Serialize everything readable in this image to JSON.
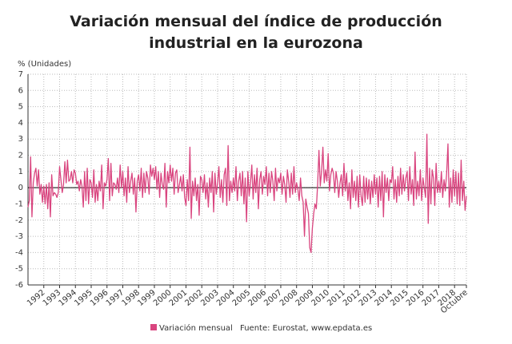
{
  "chart_data": {
    "type": "line",
    "title": "Variación mensual del índice de producción industrial en la eurozona",
    "y_label": "% (Unidades)",
    "source": "Fuente: Eurostat, www.epdata.es",
    "categories": [
      null,
      null,
      null,
      null,
      null,
      null,
      null,
      null,
      null,
      null,
      null,
      null,
      "1992",
      null,
      null,
      null,
      null,
      null,
      null,
      null,
      null,
      null,
      null,
      null,
      "1993",
      null,
      null,
      null,
      null,
      null,
      null,
      null,
      null,
      null,
      null,
      null,
      "1994",
      null,
      null,
      null,
      null,
      null,
      null,
      null,
      null,
      null,
      null,
      null,
      "1995",
      null,
      null,
      null,
      null,
      null,
      null,
      null,
      null,
      null,
      null,
      null,
      "1996",
      null,
      null,
      null,
      null,
      null,
      null,
      null,
      null,
      null,
      null,
      null,
      "1997",
      null,
      null,
      null,
      null,
      null,
      null,
      null,
      null,
      null,
      null,
      null,
      "1998",
      null,
      null,
      null,
      null,
      null,
      null,
      null,
      null,
      null,
      null,
      null,
      "1999",
      null,
      null,
      null,
      null,
      null,
      null,
      null,
      null,
      null,
      null,
      null,
      "2000",
      null,
      null,
      null,
      null,
      null,
      null,
      null,
      null,
      null,
      null,
      null,
      "2001",
      null,
      null,
      null,
      null,
      null,
      null,
      null,
      null,
      null,
      null,
      null,
      "2002",
      null,
      null,
      null,
      null,
      null,
      null,
      null,
      null,
      null,
      null,
      null,
      "2003",
      null,
      null,
      null,
      null,
      null,
      null,
      null,
      null,
      null,
      null,
      null,
      "2004",
      null,
      null,
      null,
      null,
      null,
      null,
      null,
      null,
      null,
      null,
      null,
      "2005",
      null,
      null,
      null,
      null,
      null,
      null,
      null,
      null,
      null,
      null,
      null,
      "2006",
      null,
      null,
      null,
      null,
      null,
      null,
      null,
      null,
      null,
      null,
      null,
      "2007",
      null,
      null,
      null,
      null,
      null,
      null,
      null,
      null,
      null,
      null,
      null,
      "2008",
      null,
      null,
      null,
      null,
      null,
      null,
      null,
      null,
      null,
      null,
      null,
      "2009",
      null,
      null,
      null,
      null,
      null,
      null,
      null,
      null,
      null,
      null,
      null,
      "2010",
      null,
      null,
      null,
      null,
      null,
      null,
      null,
      null,
      null,
      null,
      null,
      "2011",
      null,
      null,
      null,
      null,
      null,
      null,
      null,
      null,
      null,
      null,
      null,
      "2012",
      null,
      null,
      null,
      null,
      null,
      null,
      null,
      null,
      null,
      null,
      null,
      "2013",
      null,
      null,
      null,
      null,
      null,
      null,
      null,
      null,
      null,
      null,
      null,
      "2014",
      null,
      null,
      null,
      null,
      null,
      null,
      null,
      null,
      null,
      null,
      null,
      "2015",
      null,
      null,
      null,
      null,
      null,
      null,
      null,
      null,
      null,
      null,
      null,
      "2016",
      null,
      null,
      null,
      null,
      null,
      null,
      null,
      null,
      null,
      null,
      null,
      "2017",
      null,
      null,
      null,
      null,
      null,
      null,
      null,
      null,
      null,
      null,
      null,
      "2018",
      null,
      null,
      null,
      null,
      null,
      null,
      null,
      null,
      "Octubre"
    ],
    "series": [
      {
        "name": "Variación mensual",
        "color": "#d9457f",
        "values": [
          -1.2,
          -0.8,
          1.9,
          -1.8,
          0.3,
          0.9,
          1.2,
          0.1,
          1.1,
          -0.4,
          0.2,
          -0.9,
          0.1,
          -1.0,
          0.2,
          -1.3,
          0.3,
          -1.8,
          0.8,
          -0.5,
          -0.3,
          -0.4,
          -0.6,
          -0.3,
          1.3,
          0.5,
          -0.3,
          0.2,
          1.6,
          0.3,
          1.7,
          0.4,
          0.5,
          1.0,
          0.3,
          1.1,
          0.9,
          0.2,
          0.4,
          -0.2,
          0.5,
          0.1,
          -1.2,
          1.0,
          -0.8,
          1.2,
          -1.0,
          0.5,
          0.3,
          -0.6,
          1.1,
          -0.9,
          0.2,
          -0.8,
          0.4,
          -0.2,
          1.4,
          -1.3,
          0.3,
          0.1,
          0.5,
          1.8,
          -0.8,
          1.5,
          -0.5,
          0.3,
          0.2,
          -0.1,
          0.6,
          -0.3,
          1.4,
          0.0,
          1.0,
          -0.5,
          0.6,
          -0.9,
          1.3,
          -0.3,
          0.4,
          0.9,
          -0.4,
          0.6,
          -1.5,
          0.4,
          0.8,
          -0.2,
          1.2,
          -0.6,
          0.9,
          -0.3,
          1.0,
          0.6,
          -0.4,
          1.4,
          0.7,
          1.2,
          0.5,
          1.3,
          -0.1,
          1.0,
          -0.6,
          0.9,
          0.2,
          -0.1,
          1.5,
          -1.2,
          1.0,
          0.3,
          1.4,
          0.4,
          1.2,
          -0.4,
          0.9,
          1.1,
          -0.3,
          0.2,
          0.7,
          -0.2,
          0.8,
          -0.6,
          -1.1,
          0.5,
          -0.8,
          2.5,
          -1.9,
          0.4,
          -0.5,
          0.6,
          -0.8,
          0.2,
          -1.7,
          0.7,
          0.5,
          -0.3,
          0.8,
          -0.7,
          0.3,
          -1.2,
          0.6,
          -0.3,
          1.0,
          -1.5,
          0.9,
          -0.4,
          0.3,
          1.3,
          -0.6,
          0.5,
          -0.9,
          0.8,
          1.2,
          -1.1,
          2.6,
          -0.8,
          0.4,
          -0.3,
          0.6,
          -0.2,
          1.3,
          -0.8,
          0.4,
          0.9,
          -0.5,
          1.0,
          -1.0,
          0.6,
          -2.1,
          1.0,
          -0.5,
          0.3,
          1.4,
          -0.7,
          0.8,
          -0.3,
          1.2,
          -1.3,
          0.5,
          1.0,
          -0.4,
          0.7,
          0.2,
          1.3,
          -0.5,
          0.9,
          -0.3,
          1.0,
          0.4,
          -0.8,
          1.2,
          -0.2,
          0.6,
          0.3,
          0.9,
          -0.4,
          0.7,
          0.2,
          -0.9,
          1.1,
          0.4,
          -0.6,
          0.9,
          -0.4,
          1.3,
          -0.3,
          0.3,
          -0.1,
          -0.8,
          0.6,
          -0.5,
          -0.9,
          -3.0,
          -0.7,
          -1.2,
          -1.6,
          -3.7,
          -4.0,
          -2.5,
          -1.6,
          -1.0,
          -1.3,
          0.2,
          2.3,
          0.1,
          1.0,
          2.5,
          0.3,
          1.1,
          0.4,
          2.1,
          -0.2,
          0.8,
          1.2,
          0.9,
          -0.3,
          1.0,
          0.4,
          -0.6,
          0.3,
          0.8,
          -0.5,
          1.5,
          -0.2,
          0.9,
          -0.8,
          0.3,
          -1.3,
          1.1,
          -0.6,
          0.4,
          -0.8,
          0.7,
          -1.2,
          0.8,
          -0.5,
          -1.1,
          0.7,
          -0.9,
          0.6,
          -0.7,
          0.5,
          -1.0,
          0.4,
          -0.6,
          0.8,
          -0.4,
          0.6,
          -1.2,
          0.7,
          -0.8,
          1.0,
          -1.8,
          0.8,
          -0.3,
          0.6,
          -0.8,
          0.5,
          0.3,
          1.3,
          -0.7,
          0.5,
          -0.9,
          0.7,
          -0.5,
          1.2,
          -0.4,
          0.8,
          -0.2,
          0.6,
          1.0,
          -0.8,
          1.3,
          -0.4,
          0.5,
          -1.1,
          2.2,
          -0.7,
          0.4,
          -0.5,
          1.1,
          -0.8,
          0.6,
          0.0,
          -0.6,
          3.3,
          -2.2,
          1.2,
          -1.0,
          1.1,
          0.6,
          -1.1,
          1.5,
          -0.3,
          0.4,
          -0.3,
          1.0,
          -0.6,
          0.5,
          -0.2,
          0.9,
          2.7,
          -1.2,
          0.6,
          -0.9,
          1.1,
          -0.5,
          1.0,
          -1.0,
          0.9,
          -1.1,
          1.7,
          -0.8,
          0.4,
          -1.4,
          -0.5
        ]
      }
    ],
    "ylim": [
      -6,
      7
    ],
    "yticks": [
      -6,
      -5,
      -4,
      -3,
      -2,
      -1,
      0,
      1,
      2,
      3,
      4,
      5,
      6,
      7
    ],
    "grid": true,
    "legend": "bottom"
  }
}
